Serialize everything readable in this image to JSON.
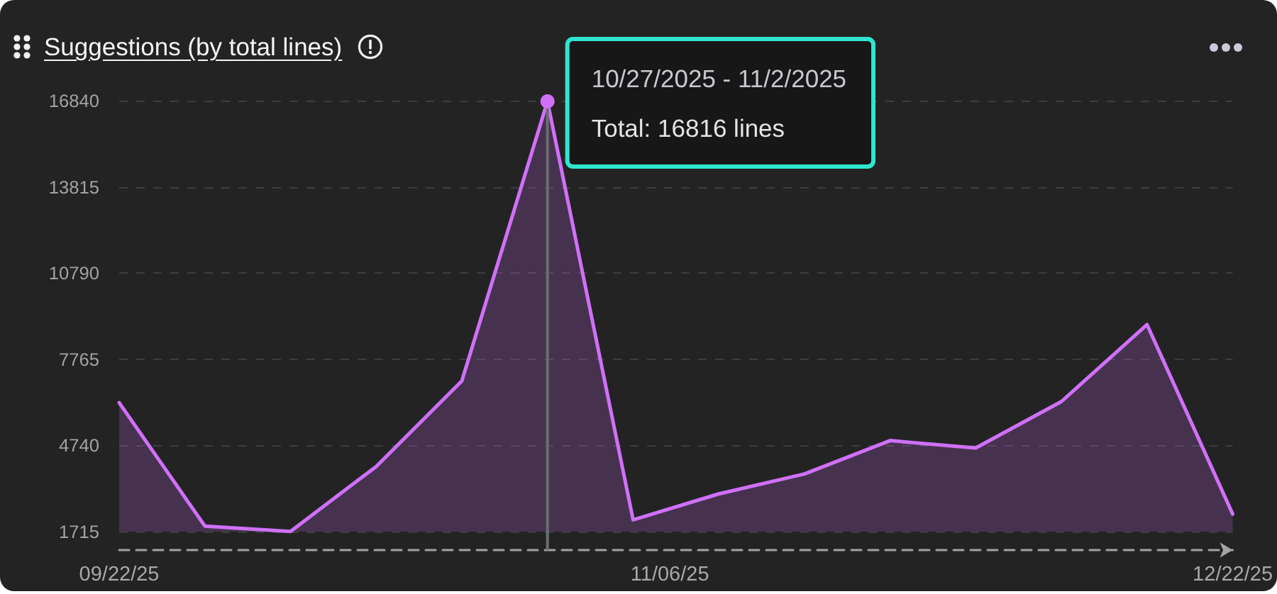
{
  "chart_data": {
    "type": "area",
    "title": "Suggestions (by total lines)",
    "x": [
      "2025-09-22",
      "2025-09-29",
      "2025-10-06",
      "2025-10-13",
      "2025-10-20",
      "2025-10-27",
      "2025-11-03",
      "2025-11-10",
      "2025-11-17",
      "2025-11-24",
      "2025-12-01",
      "2025-12-08",
      "2025-12-15",
      "2025-12-22"
    ],
    "series": [
      {
        "color": "#d070f8",
        "values": [
          6240,
          1910,
          1720,
          4000,
          7000,
          16816,
          2130,
          3040,
          3740,
          4910,
          4650,
          6280,
          8980,
          2330
        ]
      },
      {
        "type": "scatter",
        "color": "#d070f8",
        "marker": "circle",
        "x": [
          "2025-10-27"
        ],
        "values": [
          16816
        ]
      }
    ],
    "xlim": [
      "2025-09-22",
      "2025-12-22"
    ],
    "xticks": [
      {
        "value": "2025-09-22",
        "label": "09/22/25"
      },
      {
        "value": "2025-11-06",
        "label": "11/06/25"
      },
      {
        "value": "2025-12-22",
        "label": "12/22/25"
      }
    ],
    "ylim": [
      1715,
      16840
    ],
    "yticks": [
      1715,
      4740,
      7765,
      10790,
      13815,
      16840
    ],
    "grid": "y",
    "marker": "none",
    "annotations": [
      {
        "text": "10/27/2025 - 11/2/2025",
        "x": "2025-10-27",
        "y": 16816
      },
      {
        "text": "Total: 16816 lines",
        "x": "2025-10-27",
        "y": 16816
      }
    ],
    "ref_lines": [
      {
        "axis": "x",
        "value": "2025-10-27",
        "color": "#6b6e72"
      }
    ]
  }
}
